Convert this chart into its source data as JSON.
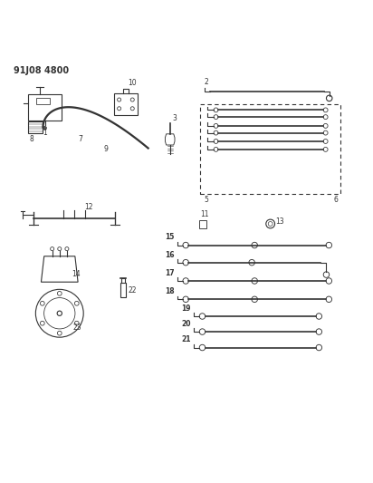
{
  "title": "91J08 4800",
  "bg_color": "#ffffff",
  "line_color": "#333333",
  "fig_width": 4.12,
  "fig_height": 5.33,
  "dpi": 100
}
